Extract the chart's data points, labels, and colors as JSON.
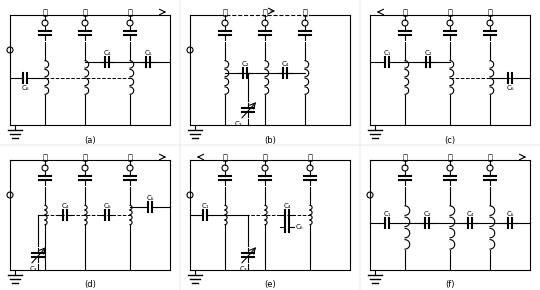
{
  "background": "#ffffff",
  "line_color": "#000000",
  "subfig_labels": [
    "(a)",
    "(b)",
    "(c)",
    "(d)",
    "(e)",
    "(f)"
  ],
  "chinese_low": "低",
  "chinese_mid": "中",
  "chinese_high": "高",
  "fig_width": 540,
  "fig_height": 290
}
